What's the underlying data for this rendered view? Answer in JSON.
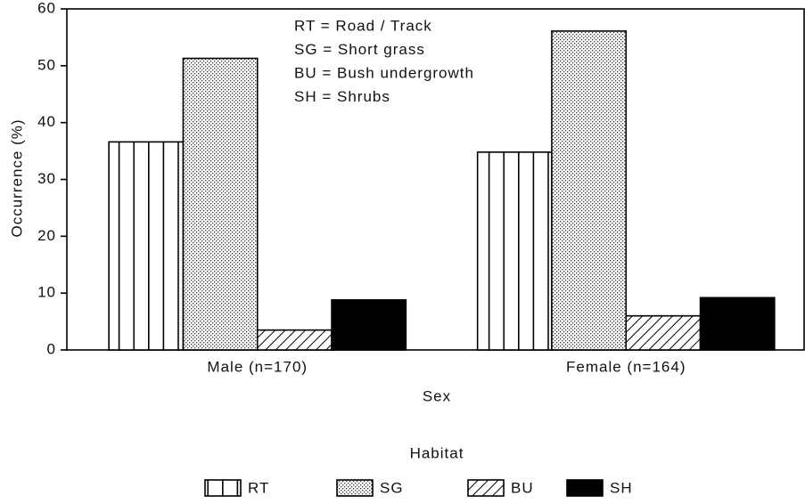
{
  "chart_data": {
    "type": "bar",
    "ylabel": "Occurrence (%)",
    "xlabel": "Sex",
    "annotations": [
      "RT = Road / Track",
      "SG = Short grass",
      "BU = Bush undergrowth",
      "SH = Shrubs"
    ],
    "categories": [
      "Male (n=170)",
      "Female (n=164)"
    ],
    "series": [
      {
        "name": "RT",
        "color": "#000000",
        "pattern": "vertical",
        "values": [
          36.6,
          34.8
        ]
      },
      {
        "name": "SG",
        "color": "#000000",
        "pattern": "dots",
        "values": [
          51.3,
          56.1
        ]
      },
      {
        "name": "BU",
        "color": "#000000",
        "pattern": "diagonal",
        "values": [
          3.5,
          6.0
        ]
      },
      {
        "name": "SH",
        "color": "#000000",
        "pattern": "solid",
        "values": [
          8.8,
          9.2
        ]
      }
    ],
    "legend_title": "Habitat",
    "legend": "bottom",
    "ylim": [
      0,
      60
    ],
    "yticks": [
      0,
      10,
      20,
      30,
      40,
      50,
      60
    ]
  }
}
